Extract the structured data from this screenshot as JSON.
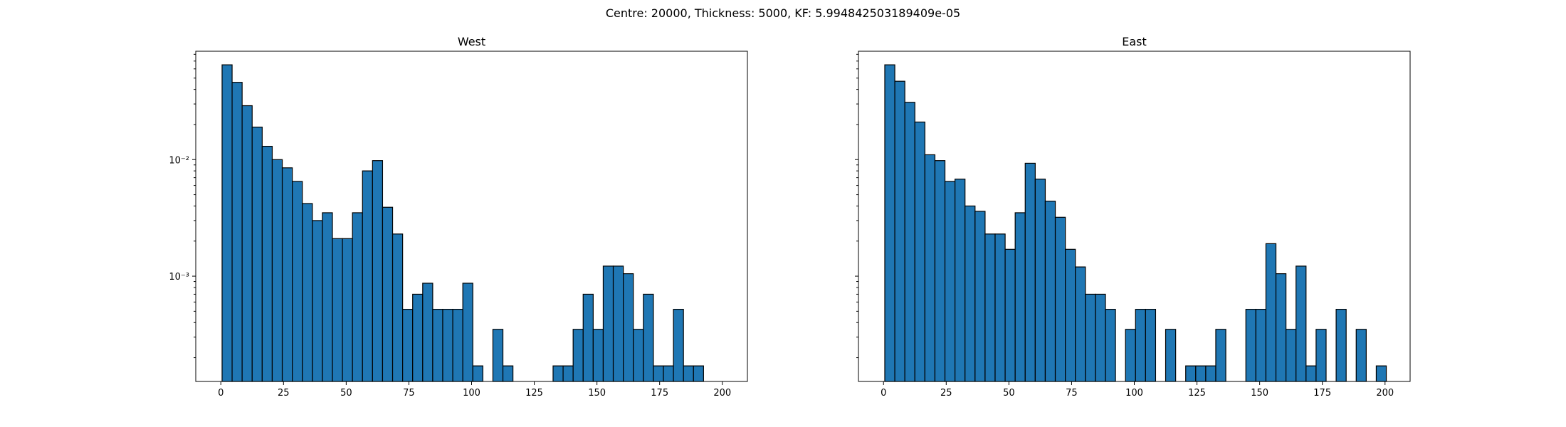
{
  "suptitle": "Centre: 20000, Thickness: 5000, KF: 5.994842503189409e-05",
  "chart_data": [
    {
      "type": "bar",
      "title": "West",
      "xlabel": "",
      "ylabel": "",
      "y_scale": "log",
      "xlim": [
        -10,
        210
      ],
      "ylim": [
        0.000125,
        0.085
      ],
      "x_ticks": [
        0,
        25,
        50,
        75,
        100,
        125,
        150,
        175,
        200
      ],
      "y_tick_labels": [
        "10⁻²",
        "10⁻³"
      ],
      "y_tick_values": [
        0.01,
        0.001
      ],
      "bar_color": "#1f77b4",
      "edge_color": "#000000",
      "bin_start": 0.5,
      "bin_width": 4,
      "values": [
        0.065,
        0.046,
        0.029,
        0.019,
        0.013,
        0.01,
        0.0085,
        0.0065,
        0.0042,
        0.003,
        0.0035,
        0.0021,
        0.0021,
        0.0035,
        0.008,
        0.0098,
        0.0039,
        0.0023,
        0.00052,
        0.0007,
        0.00087,
        0.00052,
        0.00052,
        0.00052,
        0.00087,
        0.00017,
        0,
        0.00035,
        0.00017,
        0,
        0,
        0,
        0,
        0.00017,
        0.00017,
        0.00035,
        0.0007,
        0.00035,
        0.00122,
        0.00122,
        0.00105,
        0.00035,
        0.0007,
        0.00017,
        0.00017,
        0.00052,
        0.00017,
        0.00017,
        0
      ]
    },
    {
      "type": "bar",
      "title": "East",
      "xlabel": "",
      "ylabel": "",
      "y_scale": "log",
      "xlim": [
        -10,
        210
      ],
      "ylim": [
        0.000125,
        0.085
      ],
      "x_ticks": [
        0,
        25,
        50,
        75,
        100,
        125,
        150,
        175,
        200
      ],
      "y_tick_labels": [],
      "bar_color": "#1f77b4",
      "edge_color": "#000000",
      "bin_start": 0.5,
      "bin_width": 4,
      "values": [
        0.065,
        0.047,
        0.031,
        0.021,
        0.011,
        0.0098,
        0.0065,
        0.0068,
        0.004,
        0.0036,
        0.0023,
        0.0023,
        0.0017,
        0.0035,
        0.0093,
        0.0068,
        0.0044,
        0.0032,
        0.0017,
        0.0012,
        0.0007,
        0.0007,
        0.00052,
        0,
        0.00035,
        0.00052,
        0.00052,
        0,
        0.00035,
        0,
        0.00017,
        0.00017,
        0.00017,
        0.00035,
        0,
        0,
        0.00052,
        0.00052,
        0.0019,
        0.00105,
        0.00035,
        0.00122,
        0.00017,
        0.00035,
        0,
        0.00052,
        0,
        0.00035,
        0,
        0.00017
      ]
    }
  ]
}
